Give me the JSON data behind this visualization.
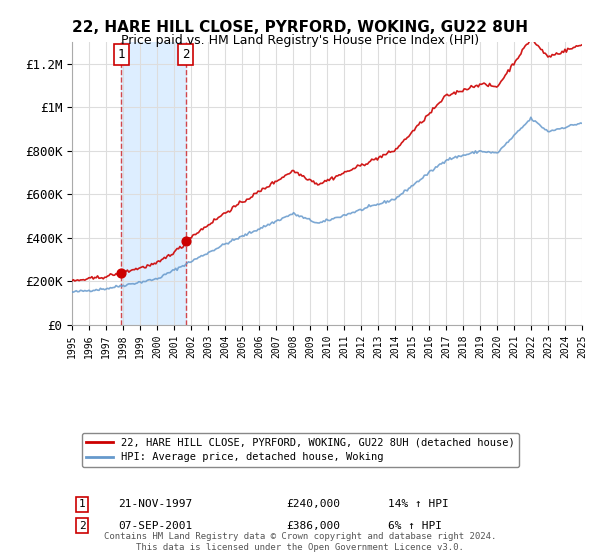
{
  "title": "22, HARE HILL CLOSE, PYRFORD, WOKING, GU22 8UH",
  "subtitle": "Price paid vs. HM Land Registry's House Price Index (HPI)",
  "sale1_date": "21-NOV-1997",
  "sale1_price": 240000,
  "sale1_hpi": "14% ↑ HPI",
  "sale1_label": "1",
  "sale2_date": "07-SEP-2001",
  "sale2_price": 386000,
  "sale2_hpi": "6% ↑ HPI",
  "sale2_label": "2",
  "legend_line1": "22, HARE HILL CLOSE, PYRFORD, WOKING, GU22 8UH (detached house)",
  "legend_line2": "HPI: Average price, detached house, Woking",
  "footer": "Contains HM Land Registry data © Crown copyright and database right 2024.\nThis data is licensed under the Open Government Licence v3.0.",
  "line_color_price": "#cc0000",
  "line_color_hpi": "#6699cc",
  "dot_color": "#cc0000",
  "shaded_region_color": "#ddeeff",
  "ylim": [
    0,
    1300000
  ],
  "yticks": [
    0,
    200000,
    400000,
    600000,
    800000,
    1000000,
    1200000
  ],
  "ytick_labels": [
    "£0",
    "£200K",
    "£400K",
    "£600K",
    "£800K",
    "£1M",
    "£1.2M"
  ],
  "x_start_year": 1995,
  "x_end_year": 2025,
  "sale1_x": 1997.9,
  "sale2_x": 2001.7
}
